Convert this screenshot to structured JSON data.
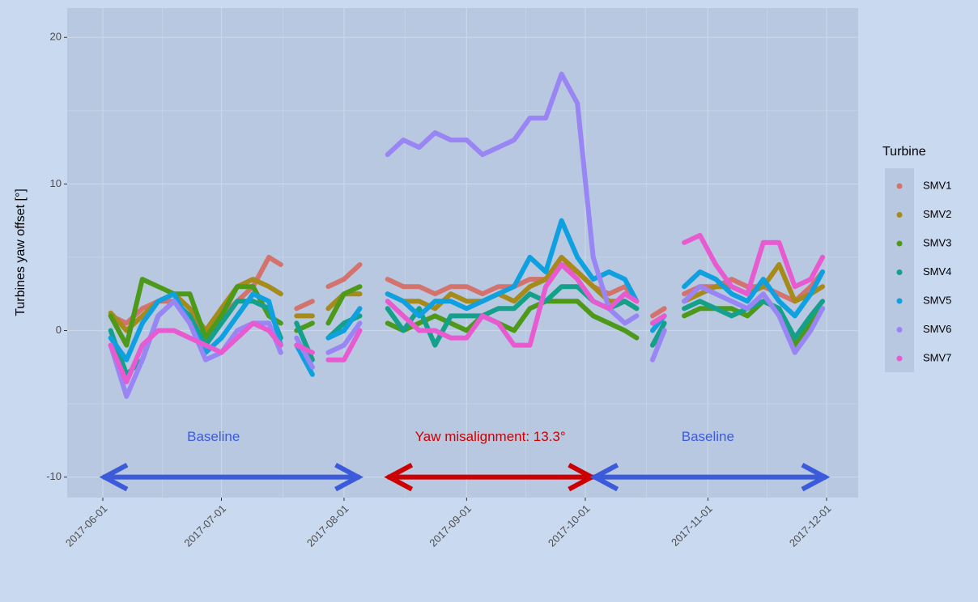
{
  "chart_data": {
    "type": "line",
    "y_label": "Turbines yaw offset [°]",
    "legend_title": "Turbine",
    "legend_position": "right",
    "grid": true,
    "xlim": [
      "2017-05-23",
      "2017-12-09"
    ],
    "xticks": [
      "2017-06-01",
      "2017-07-01",
      "2017-08-01",
      "2017-09-01",
      "2017-10-01",
      "2017-11-01",
      "2017-12-01"
    ],
    "ylim": [
      -11.4,
      22
    ],
    "yticks": [
      -10,
      0,
      10,
      20
    ],
    "x": [
      "2017-06-03",
      "2017-06-07",
      "2017-06-11",
      "2017-06-15",
      "2017-06-19",
      "2017-06-23",
      "2017-06-27",
      "2017-07-01",
      "2017-07-05",
      "2017-07-09",
      "2017-07-13",
      "2017-07-16",
      "2017-07-18",
      "2017-07-20",
      "2017-07-24",
      "2017-07-26",
      "2017-07-28",
      "2017-08-01",
      "2017-08-05",
      "2017-08-09",
      "2017-08-12",
      "2017-08-16",
      "2017-08-20",
      "2017-08-24",
      "2017-08-28",
      "2017-09-01",
      "2017-09-05",
      "2017-09-09",
      "2017-09-13",
      "2017-09-17",
      "2017-09-21",
      "2017-09-25",
      "2017-09-29",
      "2017-10-03",
      "2017-10-07",
      "2017-10-11",
      "2017-10-14",
      "2017-10-16",
      "2017-10-18",
      "2017-10-21",
      "2017-10-23",
      "2017-10-26",
      "2017-10-30",
      "2017-11-03",
      "2017-11-07",
      "2017-11-11",
      "2017-11-15",
      "2017-11-19",
      "2017-11-23",
      "2017-11-27",
      "2017-11-30"
    ],
    "series": [
      {
        "name": "SMV1",
        "color": "#d4736d",
        "values": [
          1,
          0.5,
          1.5,
          2,
          2,
          1,
          0,
          1,
          2,
          3,
          5,
          4.5,
          null,
          1.5,
          2,
          null,
          3,
          3.5,
          4.5,
          null,
          3.5,
          3,
          3,
          2.5,
          3,
          3,
          2.5,
          3,
          3,
          3.5,
          3.5,
          4.5,
          4,
          3,
          2.5,
          3,
          2,
          null,
          1,
          1.5,
          null,
          2.5,
          3,
          3,
          3.5,
          3,
          3,
          2.5,
          2,
          3,
          4
        ]
      },
      {
        "name": "SMV2",
        "color": "#a68a1a",
        "values": [
          1.2,
          0,
          1,
          2,
          2.5,
          1.5,
          0,
          1.5,
          3,
          3.5,
          3,
          2.5,
          null,
          1,
          1,
          null,
          1.5,
          2.5,
          2.5,
          null,
          2.5,
          2,
          2,
          1.5,
          2.5,
          2,
          2,
          2.5,
          2,
          3,
          3.5,
          5,
          4,
          3,
          2,
          2,
          1.5,
          null,
          0.5,
          1,
          null,
          2,
          2.5,
          3,
          3,
          2.5,
          3,
          4.5,
          2,
          2.5,
          3
        ]
      },
      {
        "name": "SMV3",
        "color": "#4d9a1a",
        "values": [
          1,
          -1,
          3.5,
          3,
          2.5,
          2.5,
          -0.5,
          1,
          3,
          3,
          1,
          0.5,
          null,
          0,
          0.5,
          null,
          0.5,
          2.5,
          3,
          null,
          0.5,
          0,
          0.5,
          1,
          0.5,
          0,
          1,
          0.5,
          0,
          1.5,
          2,
          2,
          2,
          1,
          0.5,
          0,
          -0.5,
          null,
          -1,
          0,
          null,
          1,
          1.5,
          1.5,
          1.5,
          1,
          2,
          1.5,
          -1,
          0.5,
          1.5
        ]
      },
      {
        "name": "SMV4",
        "color": "#14a08a",
        "values": [
          0,
          -3,
          -2,
          1,
          2,
          1,
          -1,
          0.5,
          2,
          2,
          1.5,
          -0.5,
          null,
          0.5,
          -2,
          null,
          -0.5,
          0.5,
          1,
          null,
          1.5,
          0,
          1.5,
          -1,
          1,
          1,
          1,
          1.5,
          1.5,
          2.5,
          2,
          3,
          3,
          2,
          1.5,
          2,
          1.5,
          null,
          -1,
          0.5,
          null,
          1.5,
          2,
          1.5,
          1,
          1.5,
          2,
          1.5,
          -0.5,
          1,
          2
        ]
      },
      {
        "name": "SMV5",
        "color": "#0fa0e0",
        "values": [
          -0.5,
          -2,
          0.5,
          2,
          2.5,
          0.5,
          -1.5,
          -0.5,
          1,
          2.5,
          2,
          -1,
          null,
          -1,
          -3,
          null,
          -0.5,
          0,
          1.5,
          null,
          2.5,
          2,
          1,
          2,
          2,
          1.5,
          2,
          2.5,
          3,
          5,
          4,
          7.5,
          5,
          3.5,
          4,
          3.5,
          2,
          null,
          0,
          1,
          null,
          3,
          4,
          3.5,
          2.5,
          2,
          3.5,
          2,
          1,
          2.5,
          4
        ]
      },
      {
        "name": "SMV6",
        "color": "#9a85f5",
        "values": [
          -1,
          -4.5,
          -2,
          1,
          2,
          0.5,
          -2,
          -1.5,
          0,
          0.5,
          0.5,
          -1.5,
          null,
          -0.5,
          -2.5,
          null,
          -1.5,
          -1,
          0.5,
          null,
          12,
          13,
          12.5,
          13.5,
          13,
          13,
          12,
          12.5,
          13,
          14.5,
          14.5,
          17.5,
          15.5,
          5,
          1.5,
          0.5,
          1,
          null,
          -2,
          0,
          null,
          2,
          3,
          2.5,
          2,
          1.5,
          2.5,
          1,
          -1.5,
          0,
          1.5
        ]
      },
      {
        "name": "SMV7",
        "color": "#e85ad0",
        "values": [
          -1,
          -3.5,
          -1,
          0,
          0,
          -0.5,
          -1,
          -1.5,
          -0.5,
          0.5,
          0,
          -1,
          null,
          -1,
          -1.5,
          null,
          -2,
          -2,
          0,
          null,
          2,
          1,
          0,
          0,
          -0.5,
          -0.5,
          1,
          0.5,
          -1,
          -1,
          3,
          4.5,
          3.5,
          2,
          1.5,
          2.5,
          2,
          null,
          0.5,
          1,
          null,
          6,
          6.5,
          4.5,
          3,
          2.5,
          6,
          6,
          3,
          3.5,
          5
        ]
      }
    ],
    "annotations": [
      {
        "text": "Baseline",
        "x": "2017-06-29",
        "y": -7.3,
        "color": "#3b5bdb"
      },
      {
        "text": "Yaw misalignment: 13.3°",
        "x": "2017-09-07",
        "y": -7.3,
        "color": "#cc0000"
      },
      {
        "text": "Baseline",
        "x": "2017-11-01",
        "y": -7.3,
        "color": "#3b5bdb"
      }
    ],
    "arrows": [
      {
        "from": "2017-06-01",
        "to": "2017-08-05",
        "y": -10,
        "color": "#3b5bdb"
      },
      {
        "from": "2017-08-12",
        "to": "2017-10-03",
        "y": -10,
        "color": "#cc0000"
      },
      {
        "from": "2017-10-03",
        "to": "2017-12-01",
        "y": -10,
        "color": "#3b5bdb"
      }
    ]
  }
}
